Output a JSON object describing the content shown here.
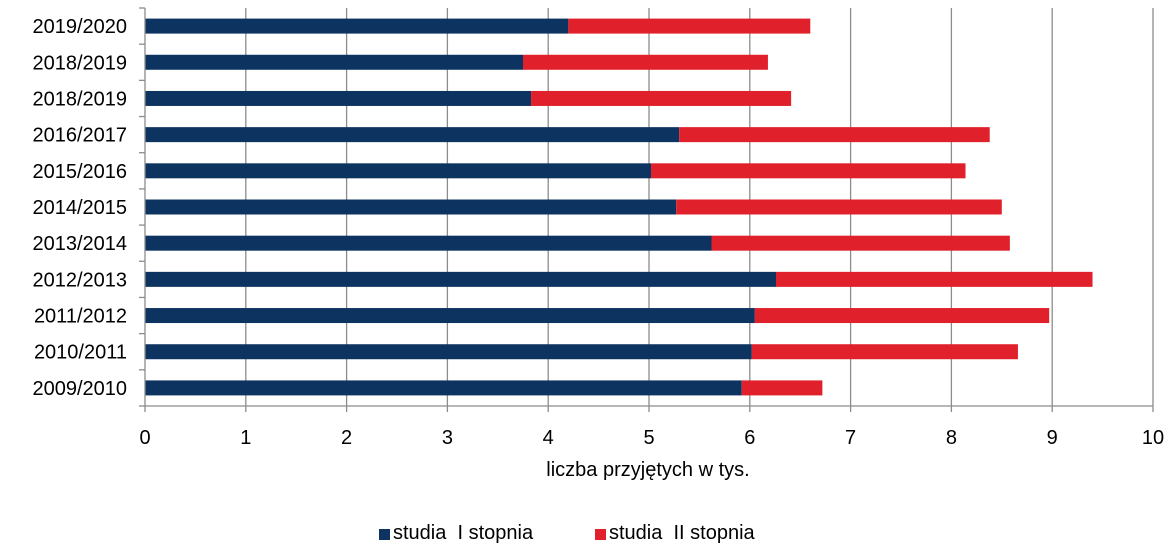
{
  "chart_data": {
    "type": "bar",
    "orientation": "horizontal",
    "stacked": true,
    "categories": [
      "2019/2020",
      "2018/2019",
      "2018/2019",
      "2016/2017",
      "2015/2016",
      "2014/2015",
      "2013/2014",
      "2012/2013",
      "2011/2012",
      "2010/2011",
      "2009/2010"
    ],
    "series": [
      {
        "name": "studia  I stopnia",
        "color": "#0d3461",
        "values": [
          4.2,
          3.75,
          3.83,
          5.3,
          5.02,
          5.27,
          5.62,
          6.26,
          6.05,
          6.02,
          5.92
        ]
      },
      {
        "name": "studia  II stopnia",
        "color": "#e0202a",
        "values": [
          2.4,
          2.43,
          2.58,
          3.08,
          3.12,
          3.23,
          2.96,
          3.14,
          2.92,
          2.64,
          0.8
        ]
      }
    ],
    "xlabel": "liczba przyjętych w tys.",
    "ylabel": "",
    "title": "",
    "xlim": [
      0,
      10
    ],
    "xticks": [
      "0",
      "1",
      "2",
      "3",
      "4",
      "5",
      "6",
      "7",
      "8",
      "9",
      "10"
    ],
    "grid": "vertical",
    "legend_position": "bottom"
  }
}
